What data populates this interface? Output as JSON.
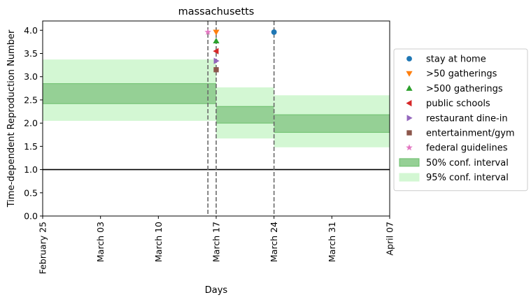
{
  "chart_data": {
    "type": "line",
    "title": "massachusetts",
    "xlabel": "Days",
    "ylabel": "Time-dependent Reproduction Number",
    "x_range": [
      "2020-02-25",
      "2020-04-07"
    ],
    "ylim": [
      0.0,
      4.2
    ],
    "x_ticks": [
      {
        "date": "2020-02-25",
        "label": "February 25"
      },
      {
        "date": "2020-03-03",
        "label": "March 03"
      },
      {
        "date": "2020-03-10",
        "label": "March 10"
      },
      {
        "date": "2020-03-17",
        "label": "March 17"
      },
      {
        "date": "2020-03-24",
        "label": "March 24"
      },
      {
        "date": "2020-03-31",
        "label": "March 31"
      },
      {
        "date": "2020-04-07",
        "label": "April 07"
      }
    ],
    "y_ticks": [
      "0.0",
      "0.5",
      "1.0",
      "1.5",
      "2.0",
      "2.5",
      "3.0",
      "3.5",
      "4.0"
    ],
    "grid": false,
    "legend_position": "outside-right",
    "reference_line": {
      "y": 1.0,
      "color": "#000000"
    },
    "intervention_lines": [
      "2020-03-16",
      "2020-03-17",
      "2020-03-24"
    ],
    "segments": [
      {
        "start": "2020-02-25",
        "end": "2020-03-16",
        "ci50": [
          2.42,
          2.85
        ],
        "ci95": [
          2.05,
          3.37
        ]
      },
      {
        "start": "2020-03-16",
        "end": "2020-03-17",
        "ci50": [
          2.42,
          2.85
        ],
        "ci95": [
          2.05,
          3.37
        ]
      },
      {
        "start": "2020-03-17",
        "end": "2020-03-24",
        "ci50": [
          2.0,
          2.36
        ],
        "ci95": [
          1.67,
          2.77
        ]
      },
      {
        "start": "2020-03-24",
        "end": "2020-04-07",
        "ci50": [
          1.8,
          2.18
        ],
        "ci95": [
          1.48,
          2.6
        ]
      }
    ],
    "interventions": [
      {
        "name": "stay at home",
        "date": "2020-03-24",
        "y": 3.96,
        "marker": "circle",
        "color": "#1f77b4"
      },
      {
        "name": ">50 gatherings",
        "date": "2020-03-17",
        "y": 3.96,
        "marker": "triangle-down",
        "color": "#ff7f0e"
      },
      {
        "name": ">500 gatherings",
        "date": "2020-03-17",
        "y": 3.77,
        "marker": "triangle-up",
        "color": "#2ca02c"
      },
      {
        "name": "public schools",
        "date": "2020-03-17",
        "y": 3.55,
        "marker": "triangle-left",
        "color": "#d62728"
      },
      {
        "name": "restaurant dine-in",
        "date": "2020-03-17",
        "y": 3.34,
        "marker": "triangle-right",
        "color": "#9467bd"
      },
      {
        "name": "entertainment/gym",
        "date": "2020-03-17",
        "y": 3.15,
        "marker": "square",
        "color": "#8c564b"
      },
      {
        "name": "federal guidelines",
        "date": "2020-03-16",
        "y": 3.96,
        "marker": "star",
        "color": "#e377c2"
      }
    ],
    "intervals": [
      {
        "name": "50% conf. interval",
        "color": "#95d095"
      },
      {
        "name": "95% conf. interval",
        "color": "#d3f7d3"
      }
    ]
  }
}
